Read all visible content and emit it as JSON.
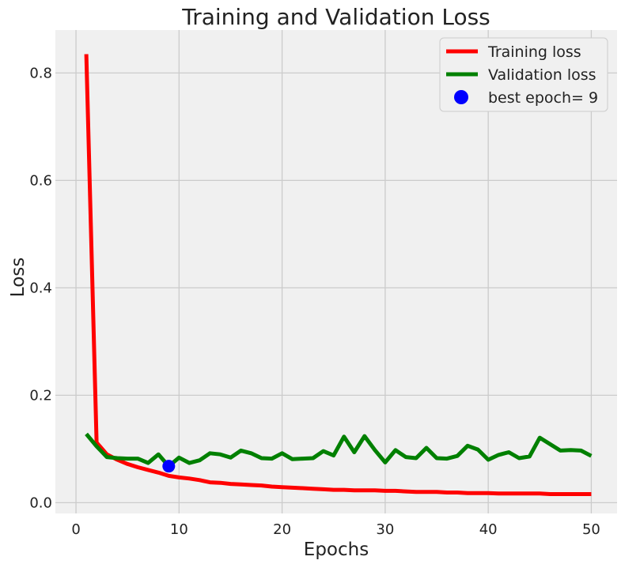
{
  "chart_data": {
    "type": "line",
    "title": "Training and Validation Loss",
    "xlabel": "Epochs",
    "ylabel": "Loss",
    "xlim": [
      -2,
      52.5
    ],
    "ylim": [
      -0.02,
      0.88
    ],
    "xticks": [
      0,
      10,
      20,
      30,
      40,
      50
    ],
    "yticks": [
      0.0,
      0.2,
      0.4,
      0.6,
      0.8
    ],
    "xtick_labels": [
      "0",
      "10",
      "20",
      "30",
      "40",
      "50"
    ],
    "ytick_labels": [
      "0.0",
      "0.2",
      "0.4",
      "0.6",
      "0.8"
    ],
    "grid": true,
    "legend_position": "top-right",
    "x": [
      1,
      2,
      3,
      4,
      5,
      6,
      7,
      8,
      9,
      10,
      11,
      12,
      13,
      14,
      15,
      16,
      17,
      18,
      19,
      20,
      21,
      22,
      23,
      24,
      25,
      26,
      27,
      28,
      29,
      30,
      31,
      32,
      33,
      34,
      35,
      36,
      37,
      38,
      39,
      40,
      41,
      42,
      43,
      44,
      45,
      46,
      47,
      48,
      49,
      50
    ],
    "series": [
      {
        "name": "Training loss",
        "color": "#ff0000",
        "values": [
          0.835,
          0.112,
          0.09,
          0.08,
          0.072,
          0.066,
          0.061,
          0.056,
          0.05,
          0.047,
          0.045,
          0.042,
          0.038,
          0.037,
          0.035,
          0.034,
          0.033,
          0.032,
          0.03,
          0.029,
          0.028,
          0.027,
          0.026,
          0.025,
          0.024,
          0.024,
          0.023,
          0.023,
          0.023,
          0.022,
          0.022,
          0.021,
          0.02,
          0.02,
          0.02,
          0.019,
          0.019,
          0.018,
          0.018,
          0.018,
          0.017,
          0.017,
          0.017,
          0.017,
          0.017,
          0.016,
          0.016,
          0.016,
          0.016,
          0.016
        ]
      },
      {
        "name": "Validation loss",
        "color": "#008000",
        "values": [
          0.128,
          0.105,
          0.085,
          0.083,
          0.082,
          0.082,
          0.074,
          0.09,
          0.068,
          0.084,
          0.074,
          0.079,
          0.092,
          0.09,
          0.084,
          0.097,
          0.092,
          0.083,
          0.082,
          0.092,
          0.081,
          0.082,
          0.083,
          0.096,
          0.088,
          0.123,
          0.094,
          0.124,
          0.098,
          0.075,
          0.098,
          0.085,
          0.083,
          0.102,
          0.083,
          0.082,
          0.087,
          0.106,
          0.099,
          0.08,
          0.089,
          0.094,
          0.083,
          0.086,
          0.121,
          0.109,
          0.097,
          0.098,
          0.097,
          0.087
        ]
      }
    ],
    "best_point": {
      "label": "best epoch= 9",
      "x": 9,
      "y": 0.068,
      "color": "#0000ff"
    }
  }
}
